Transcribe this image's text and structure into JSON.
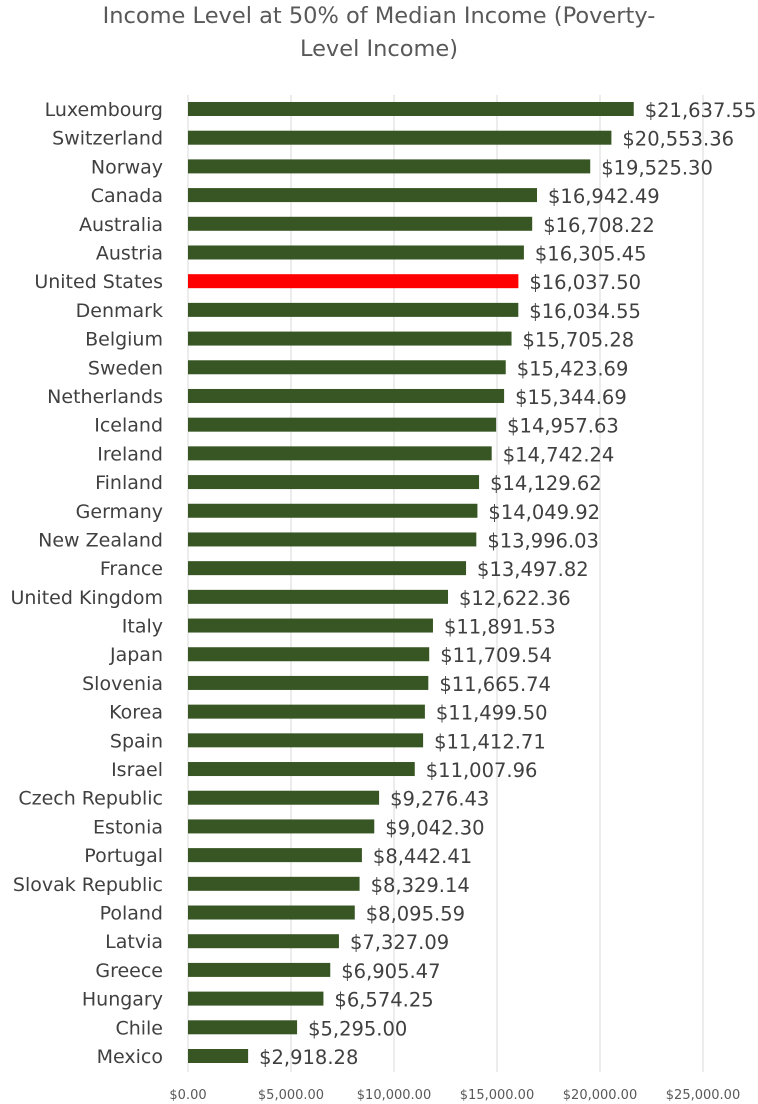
{
  "chart_data": {
    "type": "bar",
    "orientation": "horizontal",
    "title_lines": [
      "Income Level at 50% of Median Income (Poverty-",
      "Level Income)"
    ],
    "categories": [
      "Luxembourg",
      "Switzerland",
      "Norway",
      "Canada",
      "Australia",
      "Austria",
      "United States",
      "Denmark",
      "Belgium",
      "Sweden",
      "Netherlands",
      "Iceland",
      "Ireland",
      "Finland",
      "Germany",
      "New Zealand",
      "France",
      "United Kingdom",
      "Italy",
      "Japan",
      "Slovenia",
      "Korea",
      "Spain",
      "Israel",
      "Czech Republic",
      "Estonia",
      "Portugal",
      "Slovak Republic",
      "Poland",
      "Latvia",
      "Greece",
      "Hungary",
      "Chile",
      "Mexico"
    ],
    "values": [
      21637.55,
      20553.36,
      19525.3,
      16942.49,
      16708.22,
      16305.45,
      16037.5,
      16034.55,
      15705.28,
      15423.69,
      15344.69,
      14957.63,
      14742.24,
      14129.62,
      14049.92,
      13996.03,
      13497.82,
      12622.36,
      11891.53,
      11709.54,
      11665.74,
      11499.5,
      11412.71,
      11007.96,
      9276.43,
      9042.3,
      8442.41,
      8329.14,
      8095.59,
      7327.09,
      6905.47,
      6574.25,
      5295.0,
      2918.28
    ],
    "value_labels": [
      "$21,637.55",
      "$20,553.36",
      "$19,525.30",
      "$16,942.49",
      "$16,708.22",
      "$16,305.45",
      "$16,037.50",
      "$16,034.55",
      "$15,705.28",
      "$15,423.69",
      "$15,344.69",
      "$14,957.63",
      "$14,742.24",
      "$14,129.62",
      "$14,049.92",
      "$13,996.03",
      "$13,497.82",
      "$12,622.36",
      "$11,891.53",
      "$11,709.54",
      "$11,665.74",
      "$11,499.50",
      "$11,412.71",
      "$11,007.96",
      "$9,276.43",
      "$9,042.30",
      "$8,442.41",
      "$8,329.14",
      "$8,095.59",
      "$7,327.09",
      "$6,905.47",
      "$6,574.25",
      "$5,295.00",
      "$2,918.28"
    ],
    "x_ticks": [
      0,
      5000,
      10000,
      15000,
      20000,
      25000
    ],
    "x_tick_labels": [
      "$0.00",
      "$5,000.00",
      "$10,000.00",
      "$15,000.00",
      "$20,000.00",
      "$25,000.00"
    ],
    "xlim": [
      0,
      25000
    ],
    "grid": true,
    "legend": "none",
    "colors": {
      "bar": "#375623",
      "highlight": "#ff0000",
      "grid": "#d9d9d9"
    },
    "highlight_category": "United States"
  }
}
